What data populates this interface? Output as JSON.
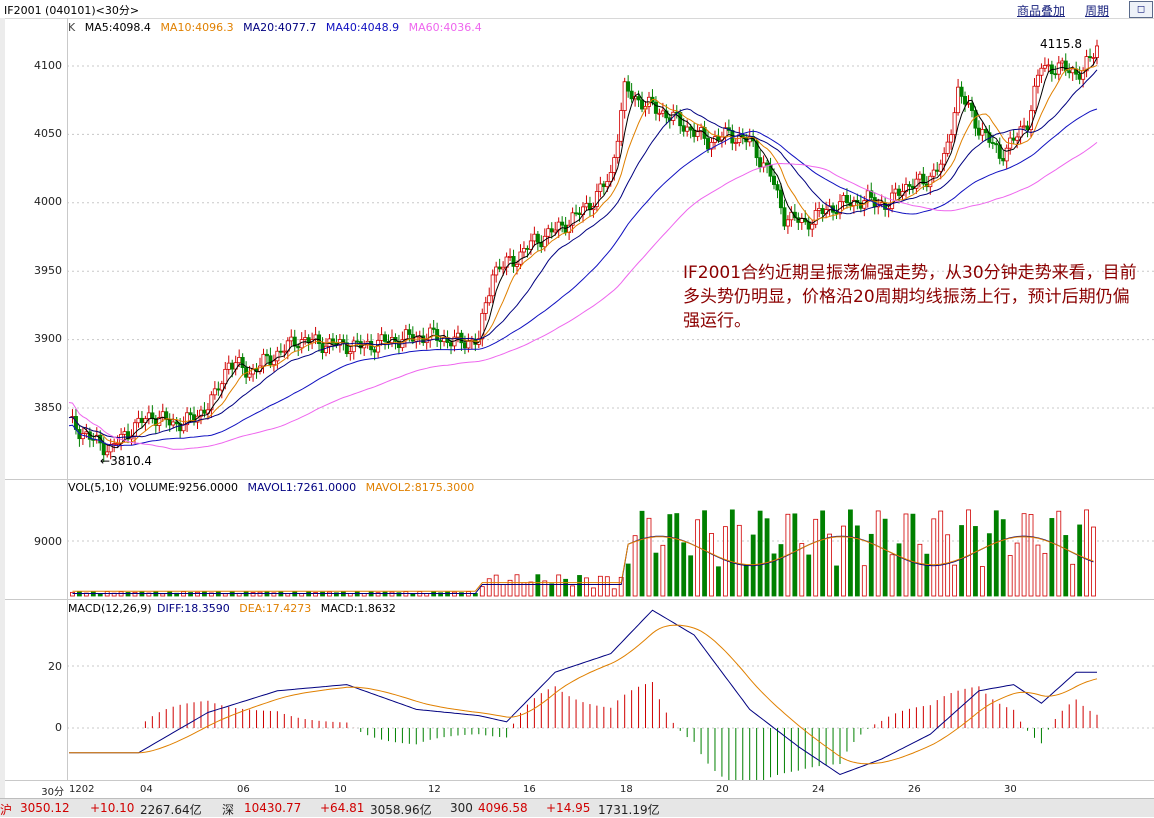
{
  "window": {
    "title": "IF2001 (040101)<30分>",
    "buttons": [
      "商品叠加",
      "周期"
    ],
    "restore_label": "◻"
  },
  "colors": {
    "up": "#d00000",
    "down": "#008000",
    "ma5": "#000000",
    "ma10": "#e08000",
    "ma20": "#000080",
    "ma40": "#0000ff",
    "ma60": "#ee66ee",
    "annotation": "#8b0000"
  },
  "price_panel": {
    "legend_k": "K",
    "legend": [
      {
        "label": "MA5:4098.4",
        "color": "#000000"
      },
      {
        "label": "MA10:4096.3",
        "color": "#e08000"
      },
      {
        "label": "MA20:4077.7",
        "color": "#000080"
      },
      {
        "label": "MA40:4048.9",
        "color": "#1010c0"
      },
      {
        "label": "MA60:4036.4",
        "color": "#ee66ee"
      }
    ],
    "y_ticks": [
      "4100",
      "4050",
      "4000",
      "3950",
      "3900",
      "3850"
    ],
    "high_label": "4115.8",
    "low_label": "3810.4"
  },
  "volume_panel": {
    "legend": [
      {
        "label": "VOL(5,10)",
        "color": "#000000"
      },
      {
        "label": "VOLUME:9256.0000",
        "color": "#000000"
      },
      {
        "label": "MAVOL1:7261.0000",
        "color": "#000080"
      },
      {
        "label": "MAVOL2:8175.3000",
        "color": "#e08000"
      }
    ],
    "y_ticks": [
      "9000"
    ]
  },
  "macd_panel": {
    "legend": [
      {
        "label": "MACD(12,26,9)",
        "color": "#000000"
      },
      {
        "label": "DIFF:18.3590",
        "color": "#000080"
      },
      {
        "label": "DEA:17.4273",
        "color": "#e08000"
      },
      {
        "label": "MACD:1.8632",
        "color": "#000000"
      }
    ],
    "y_ticks": [
      "20",
      "0"
    ]
  },
  "x_axis": {
    "period_tag": "30分",
    "labels": [
      "1202",
      "04",
      "06",
      "10",
      "12",
      "16",
      "18",
      "20",
      "24",
      "26",
      "30"
    ]
  },
  "annotation": "IF2001合约近期呈振荡偏强走势，从30分钟走势来看，目前多头势仍明显，价格沿20周期均线振荡上行，预计后期仍偏强运行。",
  "status_bar": [
    {
      "label": "沪",
      "color": "#d00000"
    },
    {
      "label": "3050.12",
      "color": "#d00000"
    },
    {
      "label": "+10.10",
      "color": "#d00000"
    },
    {
      "label": "2267.64亿",
      "color": "#222222"
    },
    {
      "label": "深",
      "color": "#222222"
    },
    {
      "label": "10430.77",
      "color": "#d00000"
    },
    {
      "label": "+64.81",
      "color": "#d00000"
    },
    {
      "label": "3058.96亿",
      "color": "#222222"
    },
    {
      "label": "300",
      "color": "#222222"
    },
    {
      "label": "4096.58",
      "color": "#d00000"
    },
    {
      "label": "+14.95",
      "color": "#d00000"
    },
    {
      "label": "1731.19亿",
      "color": "#222222"
    }
  ]
}
